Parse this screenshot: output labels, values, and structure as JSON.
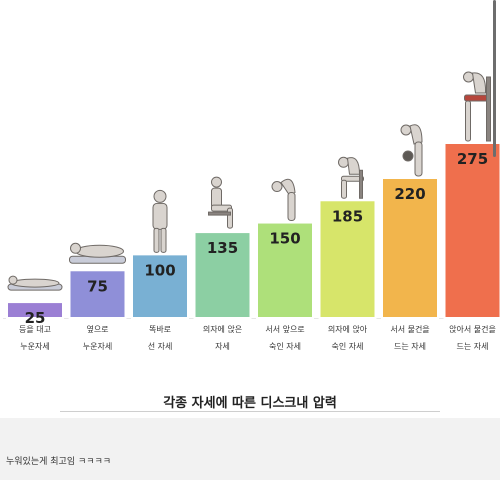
{
  "chart_data": {
    "type": "bar",
    "title": "각종 자세에 따른 디스크내 압력",
    "categories": [
      "등을 대고\n누운자세",
      "옆으로\n누운자세",
      "똑바로\n선 자세",
      "의자에 앉은\n자세",
      "서서 앞으로\n숙인 자세",
      "의자에 앉아\n숙인 자세",
      "서서 물건을\n드는 자세",
      "앉아서 물건을\n드는 자세"
    ],
    "values": [
      25,
      75,
      100,
      135,
      150,
      185,
      220,
      275
    ],
    "colors": [
      "#9b7fd4",
      "#8f8fd8",
      "#79b0d3",
      "#8ccfa3",
      "#aee07a",
      "#d7e56a",
      "#f2b54c",
      "#ef6f4d"
    ],
    "ylim": [
      0,
      275
    ],
    "grid": false,
    "legend": "none"
  },
  "comment": {
    "text": "누워있는게 최고임 ㅋㅋㅋㅋ"
  }
}
